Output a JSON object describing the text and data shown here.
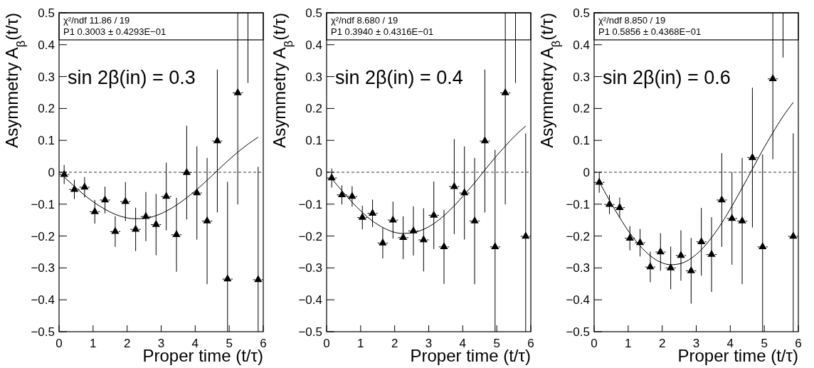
{
  "chart_data": [
    {
      "type": "scatter",
      "xlabel": "Proper time (t/τ)",
      "ylabel": "Asymmetry A$_{β}$(t/τ)",
      "xlim": [
        0,
        6
      ],
      "ylim": [
        -0.5,
        0.5
      ],
      "xticks": [
        0,
        1,
        2,
        3,
        4,
        5,
        6
      ],
      "yticks": [
        {
          "value": -0.5,
          "label": "−0.5"
        },
        {
          "value": -0.4,
          "label": "−0.4"
        },
        {
          "value": -0.3,
          "label": "−0.3"
        },
        {
          "value": -0.2,
          "label": "−0.2"
        },
        {
          "value": -0.1,
          "label": "−0.1"
        },
        0,
        0.1,
        0.2,
        0.3,
        0.4,
        0.5
      ],
      "marker": "triangle",
      "grid": false,
      "legend": false,
      "ref_lines": [
        {
          "axis": "y",
          "value": 0,
          "line_style": "dashed"
        }
      ],
      "annotations": [
        "χ²/ndf 11.86 / 19",
        "P1 0.3003 ± 0.4293E−01",
        "sin 2β(in) = 0.3"
      ],
      "series": [
        {
          "color": "#000000",
          "x": [
            0.15,
            0.45,
            0.75,
            1.05,
            1.35,
            1.65,
            1.95,
            2.25,
            2.55,
            2.85,
            3.15,
            3.45,
            3.75,
            4.05,
            4.35,
            4.65,
            4.95,
            5.25,
            5.85
          ],
          "values": [
            -0.007,
            -0.054,
            -0.047,
            -0.124,
            -0.087,
            -0.186,
            -0.092,
            -0.179,
            -0.139,
            -0.164,
            -0.076,
            -0.196,
            -0.001,
            -0.065,
            -0.153,
            0.098,
            -0.335,
            0.249,
            -0.337
          ],
          "errors": [
            0.03,
            0.03,
            0.032,
            0.037,
            0.042,
            0.048,
            0.061,
            0.068,
            0.077,
            0.096,
            0.106,
            0.116,
            0.147,
            0.146,
            0.198,
            0.224,
            [
              -0.5,
              -0.03
            ],
            [
              -0.101,
              0.5
            ],
            [
              -0.5,
              0.017
            ]
          ],
          "xerrors": [
            0.15,
            0.15,
            0.15,
            0.15,
            0.15,
            0.15,
            0.15,
            0.15,
            0.15,
            0.15,
            0.15,
            0.15,
            0.15,
            0.15,
            0.15,
            0.15,
            0.15,
            0.15,
            0.15
          ]
        },
        {
          "type": "line",
          "color": "#000000",
          "marker": "none",
          "x": [
            5.55,
            5.55
          ],
          "values": [
            0.28,
            0.5
          ]
        },
        {
          "type": "line",
          "color": "#000000",
          "marker": "none",
          "x": [
            0.15,
            0.45,
            0.75,
            1.05,
            1.35,
            1.65,
            1.95,
            2.25,
            2.55,
            2.85,
            3.15,
            3.45,
            3.75,
            4.05,
            4.35,
            4.65,
            4.95,
            5.25,
            5.55,
            5.85
          ],
          "values": [
            -0.015,
            -0.044,
            -0.072,
            -0.096,
            -0.116,
            -0.132,
            -0.142,
            -0.146,
            -0.144,
            -0.136,
            -0.122,
            -0.103,
            -0.08,
            -0.054,
            -0.025,
            0.005,
            0.035,
            0.063,
            0.088,
            0.11
          ]
        }
      ]
    },
    {
      "type": "scatter",
      "xlabel": "Proper time (t/τ)",
      "ylabel": "Asymmetry A$_{β}$(t/τ)",
      "xlim": [
        0,
        6
      ],
      "ylim": [
        -0.5,
        0.5
      ],
      "xticks": [
        0,
        1,
        2,
        3,
        4,
        5,
        6
      ],
      "yticks": [
        {
          "value": -0.5,
          "label": "−0.5"
        },
        {
          "value": -0.4,
          "label": "−0.4"
        },
        {
          "value": -0.3,
          "label": "−0.3"
        },
        {
          "value": -0.2,
          "label": "−0.2"
        },
        {
          "value": -0.1,
          "label": "−0.1"
        },
        0,
        0.1,
        0.2,
        0.3,
        0.4,
        0.5
      ],
      "marker": "triangle",
      "grid": false,
      "legend": false,
      "ref_lines": [
        {
          "axis": "y",
          "value": 0,
          "line_style": "dashed"
        }
      ],
      "annotations": [
        "χ²/ndf 8.680 / 19",
        "P1 0.3940 ± 0.4316E−01",
        "sin 2β(in) = 0.4"
      ],
      "series": [
        {
          "color": "#000000",
          "x": [
            0.15,
            0.45,
            0.75,
            1.05,
            1.35,
            1.65,
            1.95,
            2.25,
            2.55,
            2.85,
            3.15,
            3.45,
            3.75,
            4.05,
            4.35,
            4.65,
            4.95,
            5.25,
            5.85
          ],
          "values": [
            -0.018,
            -0.071,
            -0.076,
            -0.142,
            -0.129,
            -0.222,
            -0.15,
            -0.205,
            -0.184,
            -0.212,
            -0.135,
            -0.234,
            -0.045,
            -0.065,
            -0.153,
            0.098,
            -0.234,
            0.249,
            -0.201
          ],
          "errors": [
            0.03,
            0.03,
            0.032,
            0.037,
            0.043,
            0.048,
            0.058,
            0.067,
            0.077,
            0.099,
            0.106,
            0.116,
            0.149,
            0.146,
            0.198,
            0.224,
            [
              -0.5,
              0.07
            ],
            [
              -0.101,
              0.5
            ],
            [
              -0.5,
              0.122
            ]
          ],
          "xerrors": [
            0.15,
            0.15,
            0.15,
            0.15,
            0.15,
            0.15,
            0.15,
            0.15,
            0.15,
            0.15,
            0.15,
            0.15,
            0.15,
            0.15,
            0.15,
            0.15,
            0.15,
            0.15,
            0.15
          ]
        },
        {
          "type": "line",
          "color": "#000000",
          "marker": "none",
          "x": [
            5.55,
            5.55
          ],
          "values": [
            0.28,
            0.5
          ]
        },
        {
          "type": "line",
          "color": "#000000",
          "marker": "none",
          "x": [
            0.15,
            0.45,
            0.75,
            1.05,
            1.35,
            1.65,
            1.95,
            2.25,
            2.55,
            2.85,
            3.15,
            3.45,
            3.75,
            4.05,
            4.35,
            4.65,
            4.95,
            5.25,
            5.55,
            5.85
          ],
          "values": [
            -0.02,
            -0.058,
            -0.094,
            -0.126,
            -0.153,
            -0.173,
            -0.187,
            -0.192,
            -0.189,
            -0.179,
            -0.161,
            -0.136,
            -0.105,
            -0.07,
            -0.033,
            0.007,
            0.046,
            0.082,
            0.116,
            0.145
          ]
        }
      ]
    },
    {
      "type": "scatter",
      "xlabel": "Proper time (t/τ)",
      "ylabel": "Asymmetry A$_{β}$(t/τ)",
      "xlim": [
        0,
        6
      ],
      "ylim": [
        -0.5,
        0.5
      ],
      "xticks": [
        0,
        1,
        2,
        3,
        4,
        5,
        6
      ],
      "yticks": [
        {
          "value": -0.5,
          "label": "−0.5"
        },
        {
          "value": -0.4,
          "label": "−0.4"
        },
        {
          "value": -0.3,
          "label": "−0.3"
        },
        {
          "value": -0.2,
          "label": "−0.2"
        },
        {
          "value": -0.1,
          "label": "−0.1"
        },
        0,
        0.1,
        0.2,
        0.3,
        0.4,
        0.5
      ],
      "marker": "triangle",
      "grid": false,
      "legend": false,
      "ref_lines": [
        {
          "axis": "y",
          "value": 0,
          "line_style": "dashed"
        }
      ],
      "annotations": [
        "χ²/ndf 8.850 / 19",
        "P1 0.5856 ± 0.4368E−01",
        "sin 2β(in) = 0.6"
      ],
      "series": [
        {
          "color": "#000000",
          "x": [
            0.15,
            0.45,
            0.75,
            1.05,
            1.35,
            1.65,
            1.95,
            2.25,
            2.55,
            2.85,
            3.15,
            3.45,
            3.75,
            4.05,
            4.35,
            4.65,
            4.95,
            5.25,
            5.85
          ],
          "values": [
            -0.032,
            -0.101,
            -0.111,
            -0.207,
            -0.221,
            -0.297,
            -0.25,
            -0.3,
            -0.261,
            -0.309,
            -0.218,
            -0.258,
            -0.087,
            -0.145,
            -0.153,
            0.046,
            -0.234,
            0.293,
            -0.201
          ],
          "errors": [
            0.032,
            0.03,
            0.032,
            0.038,
            0.043,
            0.048,
            0.059,
            0.067,
            0.079,
            0.103,
            0.106,
            0.117,
            0.147,
            0.145,
            0.198,
            0.219,
            [
              -0.5,
              0.056
            ],
            [
              0.041,
              0.5
            ],
            [
              -0.5,
              0.122
            ]
          ],
          "xerrors": [
            0.15,
            0.15,
            0.15,
            0.15,
            0.15,
            0.15,
            0.15,
            0.15,
            0.15,
            0.15,
            0.15,
            0.15,
            0.15,
            0.15,
            0.15,
            0.15,
            0.15,
            0.15,
            0.15
          ]
        },
        {
          "type": "line",
          "color": "#000000",
          "marker": "none",
          "x": [
            5.55,
            5.55
          ],
          "values": [
            0.36,
            0.5
          ]
        },
        {
          "type": "line",
          "color": "#000000",
          "marker": "none",
          "x": [
            0.15,
            0.45,
            0.75,
            1.05,
            1.35,
            1.65,
            1.95,
            2.25,
            2.55,
            2.85,
            3.15,
            3.45,
            3.75,
            4.05,
            4.35,
            4.65,
            4.95,
            5.25,
            5.55,
            5.85
          ],
          "values": [
            -0.03,
            -0.088,
            -0.142,
            -0.191,
            -0.231,
            -0.262,
            -0.282,
            -0.29,
            -0.286,
            -0.27,
            -0.243,
            -0.205,
            -0.159,
            -0.106,
            -0.049,
            0.01,
            0.069,
            0.124,
            0.175,
            0.219
          ]
        }
      ]
    }
  ]
}
